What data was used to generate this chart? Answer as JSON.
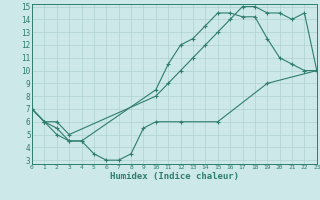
{
  "xlabel": "Humidex (Indice chaleur)",
  "xlim": [
    0,
    23
  ],
  "ylim": [
    3,
    15
  ],
  "yticks": [
    3,
    4,
    5,
    6,
    7,
    8,
    9,
    10,
    11,
    12,
    13,
    14,
    15
  ],
  "xticks": [
    0,
    1,
    2,
    3,
    4,
    5,
    6,
    7,
    8,
    9,
    10,
    11,
    12,
    13,
    14,
    15,
    16,
    17,
    18,
    19,
    20,
    21,
    22,
    23
  ],
  "line_color": "#2e7d6e",
  "bg_color": "#cde8e8",
  "grid_color": "#afd0d0",
  "line1_x": [
    0,
    1,
    2,
    3,
    10,
    11,
    12,
    13,
    14,
    15,
    16,
    17,
    18,
    19,
    20,
    21,
    22,
    23
  ],
  "line1_y": [
    7,
    6,
    6,
    5,
    8,
    9,
    10,
    11,
    12,
    13,
    14,
    15,
    15,
    14.5,
    14.5,
    14,
    14.5,
    10
  ],
  "line2_x": [
    0,
    1,
    2,
    3,
    4,
    10,
    11,
    12,
    13,
    14,
    15,
    16,
    17,
    18,
    19,
    20,
    21,
    22,
    23
  ],
  "line2_y": [
    7,
    6,
    5.5,
    4.5,
    4.5,
    8.5,
    10.5,
    12,
    12.5,
    13.5,
    14.5,
    14.5,
    14.2,
    14.2,
    12.5,
    11,
    10.5,
    10,
    10
  ],
  "line3_x": [
    0,
    1,
    2,
    3,
    4,
    5,
    6,
    7,
    8,
    9,
    10,
    12,
    15,
    19,
    23
  ],
  "line3_y": [
    7,
    6,
    5,
    4.5,
    4.5,
    3.5,
    3,
    3,
    3.5,
    5.5,
    6,
    6,
    6,
    9,
    10
  ]
}
